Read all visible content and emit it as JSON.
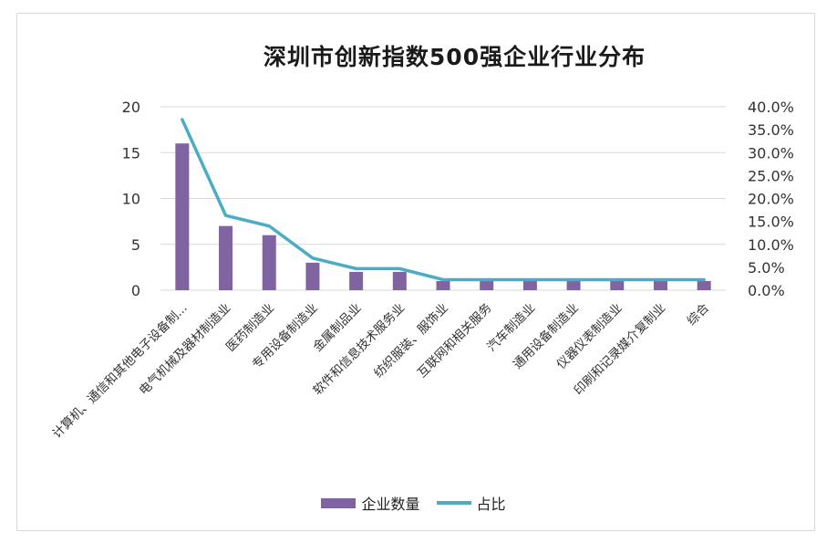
{
  "colors": {
    "bar": "#8064a2",
    "line": "#4bacc6",
    "grid": "#d9d9d9"
  },
  "chart_data": {
    "type": "bar",
    "title": "深圳市创新指数500强企业行业分布",
    "categories": [
      "计算机、通信和其他电子设备制...",
      "电气机械及器材制造业",
      "医药制造业",
      "专用设备制造业",
      "金属制品业",
      "软件和信息技术服务业",
      "纺织服装、服饰业",
      "互联网和相关服务",
      "汽车制造业",
      "通用设备制造业",
      "仪器仪表制造业",
      "印刷和记录媒介复制业",
      "综合"
    ],
    "series": [
      {
        "name": "企业数量",
        "type": "bar",
        "axis": "left",
        "values": [
          16,
          7,
          6,
          3,
          2,
          2,
          1,
          1,
          1,
          1,
          1,
          1,
          1
        ]
      },
      {
        "name": "占比",
        "type": "line",
        "axis": "right",
        "values": [
          0.372,
          0.163,
          0.14,
          0.07,
          0.047,
          0.047,
          0.023,
          0.023,
          0.023,
          0.023,
          0.023,
          0.023,
          0.023
        ]
      }
    ],
    "y_left": {
      "ylim": [
        0,
        20
      ],
      "ticks": [
        "0",
        "5",
        "10",
        "15",
        "20"
      ]
    },
    "y_right": {
      "ylim": [
        0,
        0.4
      ],
      "ticks": [
        "0.0%",
        "5.0%",
        "10.0%",
        "15.0%",
        "20.0%",
        "25.0%",
        "30.0%",
        "35.0%",
        "40.0%"
      ]
    },
    "legend": {
      "position": "bottom"
    },
    "grid": true
  }
}
